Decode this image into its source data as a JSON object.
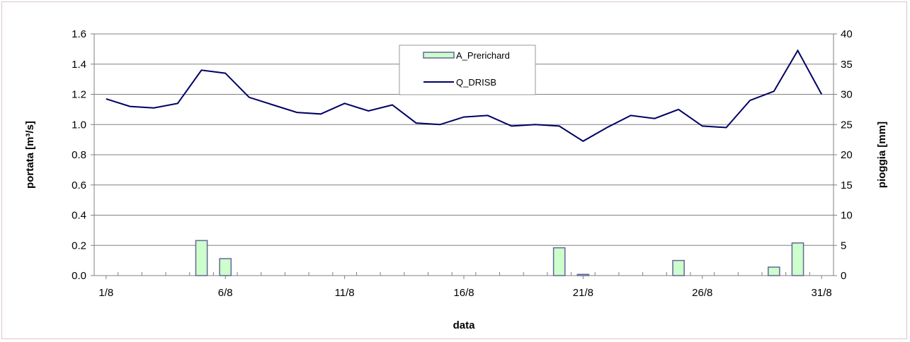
{
  "chart_data": {
    "type": "bar+line",
    "title": "",
    "xlabel": "data",
    "ylabel_left": "portata [m³/s]",
    "ylabel_right": "pioggia [mm]",
    "x_days": [
      1,
      2,
      3,
      4,
      5,
      6,
      7,
      8,
      9,
      10,
      11,
      12,
      13,
      14,
      15,
      16,
      17,
      18,
      19,
      20,
      21,
      22,
      23,
      24,
      25,
      26,
      27,
      28,
      29,
      30,
      31
    ],
    "x_tick_labels": [
      "1/8",
      "6/8",
      "11/8",
      "16/8",
      "21/8",
      "26/8",
      "31/8"
    ],
    "y_left": {
      "min": 0,
      "max": 1.6,
      "ticks": [
        "0.0",
        "0.2",
        "0.4",
        "0.6",
        "0.8",
        "1.0",
        "1.2",
        "1.4",
        "1.6"
      ]
    },
    "y_right": {
      "min": 0,
      "max": 40,
      "ticks": [
        "0",
        "5",
        "10",
        "15",
        "20",
        "25",
        "30",
        "35",
        "40"
      ]
    },
    "grid": "horizontal",
    "legend_position": "top-center",
    "series": [
      {
        "name": "A_Prerichard",
        "type": "bar",
        "axis": "right",
        "color": "#ccffcc",
        "edge": "#666699",
        "values": [
          0,
          0,
          0,
          0,
          5.8,
          2.8,
          0,
          0,
          0,
          0,
          0,
          0,
          0,
          0,
          0,
          0,
          0,
          0,
          0,
          4.6,
          0.2,
          0,
          0,
          0,
          2.5,
          0,
          0,
          0,
          1.4,
          5.4,
          0
        ]
      },
      {
        "name": "Q_DRISB",
        "type": "line",
        "axis": "left",
        "color": "#000066",
        "values": [
          1.17,
          1.12,
          1.11,
          1.14,
          1.36,
          1.34,
          1.18,
          1.13,
          1.08,
          1.07,
          1.14,
          1.09,
          1.13,
          1.01,
          1.0,
          1.05,
          1.06,
          0.99,
          1.0,
          0.99,
          0.89,
          0.98,
          1.06,
          1.04,
          1.1,
          0.99,
          0.98,
          1.16,
          1.22,
          1.49,
          1.2
        ]
      }
    ]
  }
}
